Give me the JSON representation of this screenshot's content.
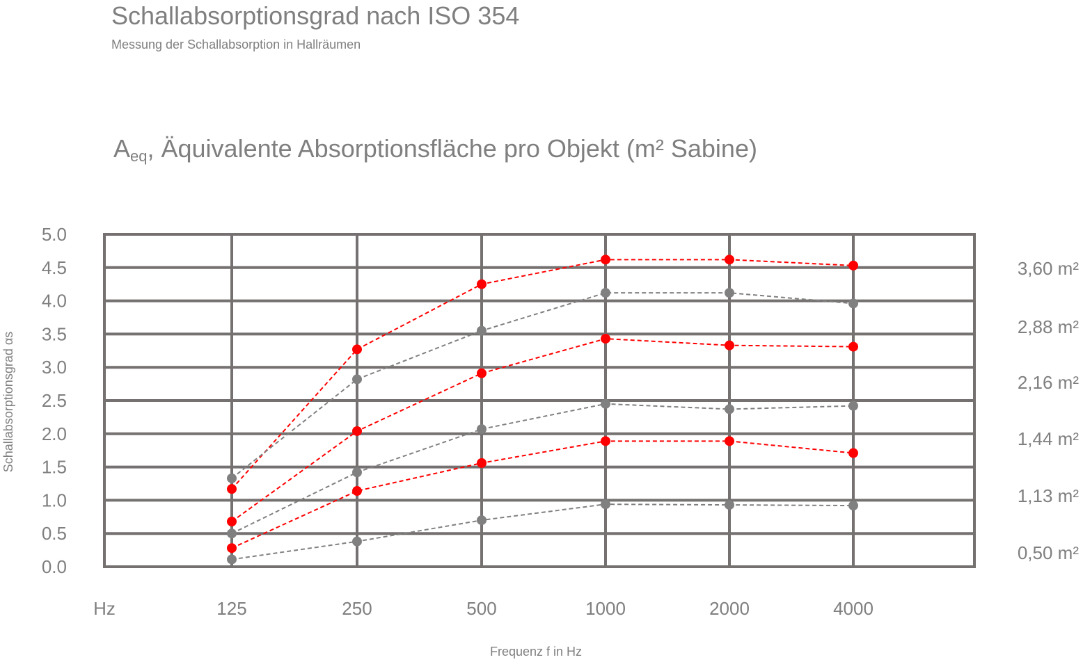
{
  "title": "Schallabsorptionsgrad nach ISO 354",
  "subtitle": "Messung der Schallabsorption in Hallräumen",
  "heading": {
    "prefix": "A",
    "sub": "eq",
    "rest": ", Äquivalente Absorptionsfläche pro Objekt (m² Sabine)"
  },
  "x_unit_label": "Hz",
  "area_labels": [
    "3,60 m²",
    "2,88 m²",
    "2,16 m²",
    "1,44 m²",
    "1,13 m²",
    "0,50 m²"
  ],
  "colors": {
    "grid": "#767171",
    "gray_series": "#808080",
    "red_series": "#ff0000",
    "text": "#7f7f7f"
  },
  "chart_data": {
    "type": "line",
    "xlabel": "Frequenz f in Hz",
    "ylabel": "Schallabsorptionsgrad αs",
    "categories": [
      "125",
      "250",
      "500",
      "1000",
      "2000",
      "4000"
    ],
    "ylim": [
      0,
      5
    ],
    "yticks": [
      "0.0",
      "0.5",
      "1.0",
      "1.5",
      "2.0",
      "2.5",
      "3.0",
      "3.5",
      "4.0",
      "4.5",
      "5.0"
    ],
    "grid": true,
    "series": [
      {
        "color": "#ff0000",
        "values": [
          1.17,
          3.27,
          4.25,
          4.62,
          4.62,
          4.53
        ]
      },
      {
        "color": "#808080",
        "values": [
          1.33,
          2.82,
          3.55,
          4.12,
          4.12,
          3.96
        ]
      },
      {
        "color": "#ff0000",
        "values": [
          0.68,
          2.04,
          2.91,
          3.43,
          3.33,
          3.31
        ]
      },
      {
        "color": "#808080",
        "values": [
          0.5,
          1.42,
          2.07,
          2.45,
          2.37,
          2.42
        ]
      },
      {
        "color": "#ff0000",
        "values": [
          0.28,
          1.14,
          1.56,
          1.89,
          1.89,
          1.71
        ]
      },
      {
        "color": "#808080",
        "values": [
          0.11,
          0.38,
          0.7,
          0.94,
          0.93,
          0.92
        ]
      }
    ]
  }
}
